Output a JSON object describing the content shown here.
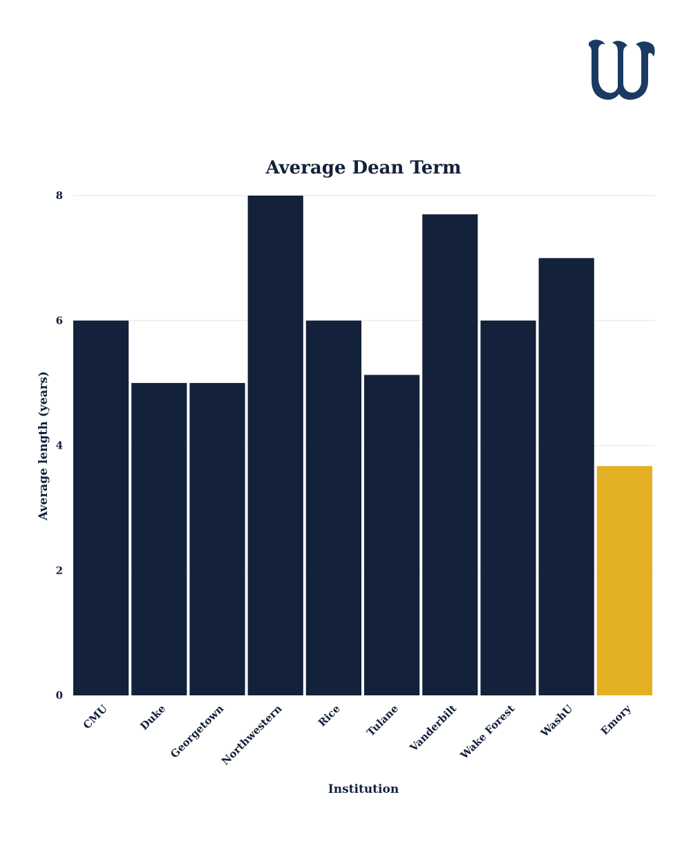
{
  "logo": {
    "name": "W",
    "color": "#1b3a63"
  },
  "colors": {
    "bar": "#13213a",
    "highlight": "#e2b022",
    "text": "#13213a",
    "grid": "#e6e6e6"
  },
  "chart_data": {
    "type": "bar",
    "title": "Average Dean Term",
    "xlabel": "Institution",
    "ylabel": "Average length (years)",
    "categories": [
      "CMU",
      "Duke",
      "Georgetown",
      "Northwestern",
      "Rice",
      "Tulane",
      "Vanderbilt",
      "Wake Forest",
      "WashU",
      "Emory"
    ],
    "values": [
      6,
      5,
      5,
      8,
      6,
      5.13,
      7.7,
      6,
      7,
      3.67
    ],
    "highlight": "Emory",
    "ylim": [
      0,
      8
    ],
    "yticks": [
      0,
      2,
      4,
      6,
      8
    ],
    "grid": true
  }
}
